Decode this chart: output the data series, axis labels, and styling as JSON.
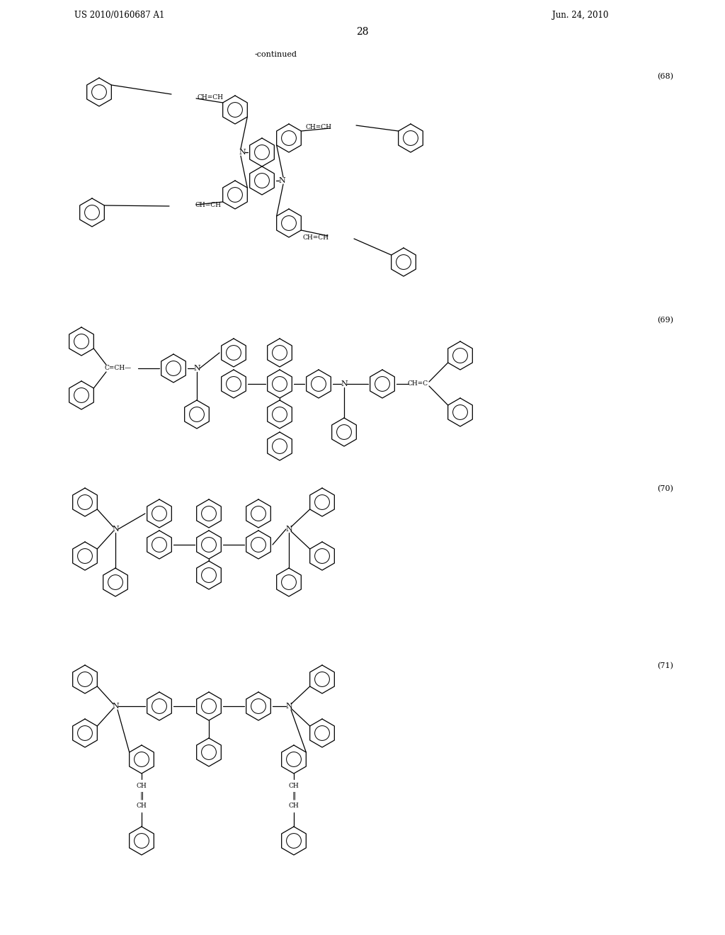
{
  "background_color": "#ffffff",
  "page_number": "28",
  "patent_left": "US 2010/0160687 A1",
  "patent_right": "Jun. 24, 2010",
  "continued_label": "-continued",
  "compound_numbers": [
    "(68)",
    "(69)",
    "(70)",
    "(71)"
  ]
}
